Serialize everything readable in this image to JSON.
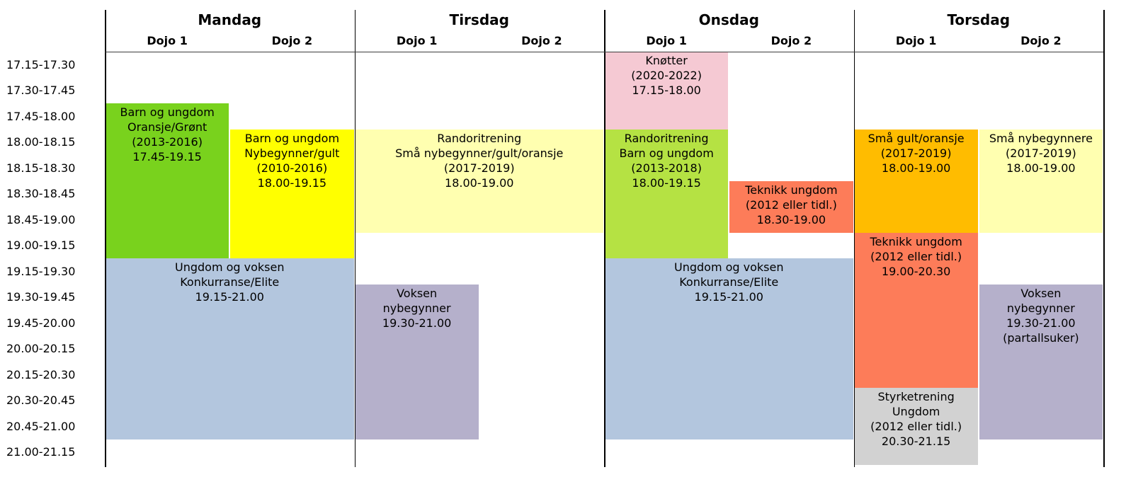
{
  "schedule": {
    "days": [
      {
        "name": "Mandag",
        "dojos": [
          "Dojo 1",
          "Dojo 2"
        ]
      },
      {
        "name": "Tirsdag",
        "dojos": [
          "Dojo 1",
          "Dojo 2"
        ]
      },
      {
        "name": "Onsdag",
        "dojos": [
          "Dojo 1",
          "Dojo 2"
        ]
      },
      {
        "name": "Torsdag",
        "dojos": [
          "Dojo 1",
          "Dojo 2"
        ]
      }
    ],
    "time_slots": [
      "17.15-17.30",
      "17.30-17.45",
      "17.45-18.00",
      "18.00-18.15",
      "18.15-18.30",
      "18.30-18.45",
      "18.45-19.00",
      "19.00-19.15",
      "19.15-19.30",
      "19.30-19.45",
      "19.45-20.00",
      "20.00-20.15",
      "20.15-20.30",
      "20.30-20.45",
      "20.45-21.00",
      "21.00-21.15"
    ],
    "events": [
      {
        "id": "mandag-dojo1-barn-og-ungdom",
        "day": 0,
        "dojo": "1",
        "start": "17.45",
        "end": "19.15",
        "lines": [
          "Barn og ungdom",
          "Oransje/Grønt",
          "(2013-2016)",
          "17.45-19.15"
        ],
        "color": "#79d21d"
      },
      {
        "id": "mandag-dojo2-barn-og-ungdom",
        "day": 0,
        "dojo": "2",
        "start": "18.00",
        "end": "19.15",
        "lines": [
          "Barn og ungdom",
          "Nybegynner/gult",
          "(2010-2016)",
          "18.00-19.15"
        ],
        "color": "#ffff00"
      },
      {
        "id": "mandag-konkurranse-elite",
        "day": 0,
        "dojo": "both",
        "start": "19.15",
        "end": "21.00",
        "lines": [
          "Ungdom og voksen",
          "Konkurranse/Elite",
          "19.15-21.00"
        ],
        "color": "#b3c6de"
      },
      {
        "id": "tirsdag-randoritrening",
        "day": 1,
        "dojo": "both",
        "start": "18.00",
        "end": "19.00",
        "lines": [
          "Randoritrening",
          "Små nybegynner/gult/oransje",
          "(2017-2019)",
          "18.00-19.00"
        ],
        "color": "#ffffb0"
      },
      {
        "id": "tirsdag-voksen-nybegynner",
        "day": 1,
        "dojo": "1",
        "start": "19.30",
        "end": "21.00",
        "lines": [
          "Voksen",
          "nybegynner",
          "19.30-21.00"
        ],
        "color": "#b5b0cb"
      },
      {
        "id": "onsdag-knotter",
        "day": 2,
        "dojo": "1",
        "start": "17.15",
        "end": "18.00",
        "lines": [
          "Knøtter",
          "(2020-2022)",
          "17.15-18.00"
        ],
        "color": "#f5c9d3"
      },
      {
        "id": "onsdag-randoritrening",
        "day": 2,
        "dojo": "1",
        "start": "18.00",
        "end": "19.15",
        "lines": [
          "Randoritrening",
          "Barn og ungdom",
          "(2013-2018)",
          "18.00-19.15"
        ],
        "color": "#b5e243"
      },
      {
        "id": "onsdag-teknikk-ungdom",
        "day": 2,
        "dojo": "2",
        "start": "18.30",
        "end": "19.00",
        "lines": [
          "Teknikk ungdom",
          "(2012 eller tidl.)",
          "18.30-19.00"
        ],
        "color": "#fd7c59"
      },
      {
        "id": "onsdag-konkurranse-elite",
        "day": 2,
        "dojo": "both",
        "start": "19.15",
        "end": "21.00",
        "lines": [
          "Ungdom og voksen",
          "Konkurranse/Elite",
          "19.15-21.00"
        ],
        "color": "#b3c6de"
      },
      {
        "id": "torsdag-sma-gult-oransje",
        "day": 3,
        "dojo": "1",
        "start": "18.00",
        "end": "19.00",
        "lines": [
          "Små gult/oransje",
          "(2017-2019)",
          "18.00-19.00"
        ],
        "color": "#ffbc00"
      },
      {
        "id": "torsdag-sma-nybegynnere",
        "day": 3,
        "dojo": "2",
        "start": "18.00",
        "end": "19.00",
        "lines": [
          "Små nybegynnere",
          "(2017-2019)",
          "18.00-19.00"
        ],
        "color": "#ffffb0"
      },
      {
        "id": "torsdag-teknikk-ungdom",
        "day": 3,
        "dojo": "1",
        "start": "19.00",
        "end": "20.30",
        "lines": [
          "Teknikk ungdom",
          "(2012 eller tidl.)",
          "19.00-20.30"
        ],
        "color": "#fd7c59"
      },
      {
        "id": "torsdag-voksen-nybegynner",
        "day": 3,
        "dojo": "2",
        "start": "19.30",
        "end": "21.00",
        "lines": [
          "Voksen",
          "nybegynner",
          "19.30-21.00",
          "(partallsuker)"
        ],
        "color": "#b5b0cb"
      },
      {
        "id": "torsdag-styrketrening-ungdom",
        "day": 3,
        "dojo": "1",
        "start": "20.30",
        "end": "21.15",
        "lines": [
          "Styrketrening",
          "Ungdom",
          "(2012 eller tidl.)",
          "20.30-21.15"
        ],
        "color": "#d2d2d2"
      }
    ],
    "grid_line_color": "#000000"
  }
}
